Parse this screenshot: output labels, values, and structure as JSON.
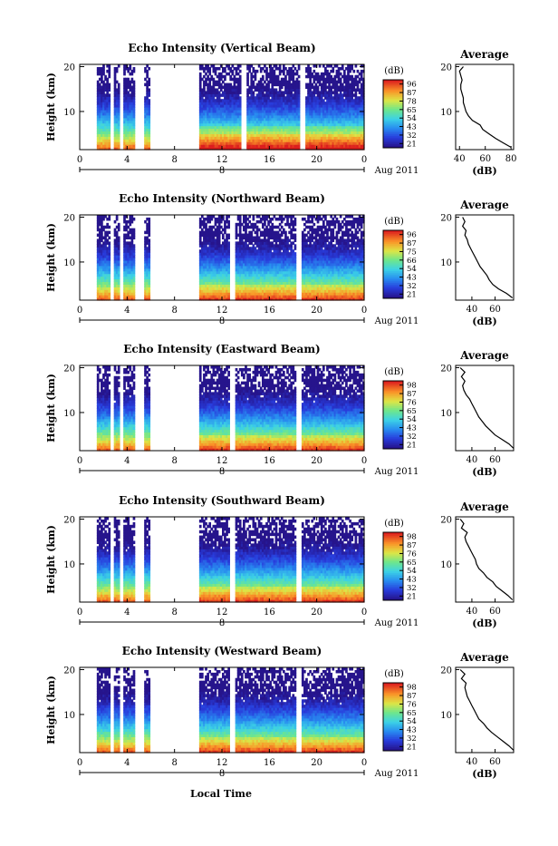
{
  "figure": {
    "xlabel": "Local Time",
    "date_label": "Aug 2011",
    "day_label": "8"
  },
  "chart_data": [
    {
      "type": "heatmap",
      "title": "Echo Intensity (Vertical Beam)",
      "ylabel": "Height (km)",
      "xlabel": "Local Time",
      "x_ticks": [
        "0",
        "4",
        "8",
        "12",
        "16",
        "20",
        "0"
      ],
      "y_ticks": [
        "20",
        "10"
      ],
      "xlim": [
        0,
        24
      ],
      "ylim": [
        1.5,
        20.5
      ],
      "colorbar": {
        "label": "(dB)",
        "ticks": [
          "96",
          "87",
          "78",
          "65",
          "54",
          "43",
          "32",
          "21"
        ],
        "range": [
          21,
          96
        ]
      },
      "data_gaps_hours": [
        [
          0,
          1.4
        ],
        [
          2.6,
          2.9
        ],
        [
          3.4,
          3.6
        ],
        [
          4.6,
          5.4
        ],
        [
          6.0,
          10.0
        ],
        [
          13.6,
          14.1
        ],
        [
          18.5,
          19.1
        ]
      ],
      "average_profile": {
        "title": "Average",
        "xlabel": "(dB)",
        "x_ticks": [
          "40",
          "60",
          "80"
        ],
        "xlim": [
          37,
          82
        ],
        "y_ticks": [
          "20",
          "10"
        ],
        "height_km": [
          2,
          3,
          4,
          5,
          6,
          7,
          8,
          9,
          10,
          11,
          12,
          13,
          14,
          15,
          16,
          17,
          18,
          19,
          20
        ],
        "db": [
          80,
          74,
          68,
          63,
          58,
          56,
          50,
          47,
          45,
          44,
          43,
          43,
          42,
          41,
          41,
          42,
          41,
          40,
          43
        ]
      }
    },
    {
      "type": "heatmap",
      "title": "Echo Intensity (Northward Beam)",
      "ylabel": "Height (km)",
      "xlabel": "Local Time",
      "x_ticks": [
        "0",
        "4",
        "8",
        "12",
        "16",
        "20",
        "0"
      ],
      "y_ticks": [
        "20",
        "10"
      ],
      "xlim": [
        0,
        24
      ],
      "ylim": [
        1.5,
        20.5
      ],
      "colorbar": {
        "label": "(dB)",
        "ticks": [
          "96",
          "87",
          "75",
          "66",
          "54",
          "43",
          "32",
          "21"
        ],
        "range": [
          21,
          96
        ]
      },
      "data_gaps_hours": [
        [
          0,
          1.4
        ],
        [
          2.6,
          2.9
        ],
        [
          3.4,
          3.6
        ],
        [
          4.6,
          5.4
        ],
        [
          6.0,
          10.0
        ],
        [
          12.6,
          13.1
        ],
        [
          18.2,
          18.7
        ]
      ],
      "average_profile": {
        "title": "Average",
        "xlabel": "(dB)",
        "x_ticks": [
          "40",
          "60"
        ],
        "xlim": [
          26,
          76
        ],
        "y_ticks": [
          "20",
          "10"
        ],
        "height_km": [
          2,
          3,
          4,
          5,
          6,
          7,
          8,
          9,
          10,
          11,
          12,
          13,
          14,
          15,
          16,
          17,
          18,
          19,
          20
        ],
        "db": [
          75,
          70,
          63,
          58,
          55,
          53,
          50,
          47,
          45,
          43,
          41,
          39,
          37,
          36,
          34,
          35,
          32,
          34,
          32
        ]
      }
    },
    {
      "type": "heatmap",
      "title": "Echo Intensity (Eastward Beam)",
      "ylabel": "Height (km)",
      "xlabel": "Local Time",
      "x_ticks": [
        "0",
        "4",
        "8",
        "12",
        "16",
        "20",
        "0"
      ],
      "y_ticks": [
        "20",
        "10"
      ],
      "xlim": [
        0,
        24
      ],
      "ylim": [
        1.5,
        20.5
      ],
      "colorbar": {
        "label": "(dB)",
        "ticks": [
          "98",
          "87",
          "76",
          "65",
          "54",
          "43",
          "32",
          "21"
        ],
        "range": [
          21,
          98
        ]
      },
      "data_gaps_hours": [
        [
          0,
          1.4
        ],
        [
          2.6,
          2.9
        ],
        [
          3.4,
          3.6
        ],
        [
          4.6,
          5.4
        ],
        [
          6.0,
          10.0
        ],
        [
          12.6,
          13.1
        ],
        [
          18.2,
          18.7
        ]
      ],
      "average_profile": {
        "title": "Average",
        "xlabel": "(dB)",
        "x_ticks": [
          "40",
          "60"
        ],
        "xlim": [
          26,
          76
        ],
        "y_ticks": [
          "20",
          "10"
        ],
        "height_km": [
          2,
          3,
          4,
          5,
          6,
          7,
          8,
          9,
          10,
          11,
          12,
          13,
          14,
          15,
          16,
          17,
          18,
          19,
          20
        ],
        "db": [
          76,
          72,
          66,
          60,
          56,
          52,
          49,
          46,
          44,
          42,
          40,
          38,
          35,
          33,
          32,
          34,
          31,
          34,
          30
        ]
      }
    },
    {
      "type": "heatmap",
      "title": "Echo Intensity (Southward Beam)",
      "ylabel": "Height (km)",
      "xlabel": "Local Time",
      "x_ticks": [
        "0",
        "4",
        "8",
        "12",
        "16",
        "20",
        "0"
      ],
      "y_ticks": [
        "20",
        "10"
      ],
      "xlim": [
        0,
        24
      ],
      "ylim": [
        1.5,
        20.5
      ],
      "colorbar": {
        "label": "(dB)",
        "ticks": [
          "98",
          "87",
          "76",
          "65",
          "54",
          "43",
          "32",
          "21"
        ],
        "range": [
          21,
          98
        ]
      },
      "data_gaps_hours": [
        [
          0,
          1.4
        ],
        [
          2.6,
          2.9
        ],
        [
          3.4,
          3.6
        ],
        [
          4.6,
          5.4
        ],
        [
          6.0,
          10.0
        ],
        [
          12.6,
          13.1
        ],
        [
          18.2,
          18.7
        ]
      ],
      "average_profile": {
        "title": "Average",
        "xlabel": "(dB)",
        "x_ticks": [
          "40",
          "60"
        ],
        "xlim": [
          26,
          76
        ],
        "y_ticks": [
          "20",
          "10"
        ],
        "height_km": [
          2,
          3,
          4,
          5,
          6,
          7,
          8,
          9,
          10,
          11,
          12,
          13,
          14,
          15,
          16,
          17,
          18,
          19,
          20
        ],
        "db": [
          75,
          71,
          66,
          61,
          58,
          53,
          50,
          46,
          44,
          43,
          41,
          39,
          37,
          35,
          34,
          36,
          31,
          33,
          30
        ]
      }
    },
    {
      "type": "heatmap",
      "title": "Echo Intensity (Westward Beam)",
      "ylabel": "Height (km)",
      "xlabel": "Local Time",
      "x_ticks": [
        "0",
        "4",
        "8",
        "12",
        "16",
        "20",
        "0"
      ],
      "y_ticks": [
        "20",
        "10"
      ],
      "xlim": [
        0,
        24
      ],
      "ylim": [
        1.5,
        20.5
      ],
      "colorbar": {
        "label": "(dB)",
        "ticks": [
          "98",
          "87",
          "76",
          "65",
          "54",
          "43",
          "32",
          "21"
        ],
        "range": [
          21,
          98
        ]
      },
      "data_gaps_hours": [
        [
          0,
          1.4
        ],
        [
          2.6,
          2.9
        ],
        [
          3.4,
          3.6
        ],
        [
          4.6,
          5.4
        ],
        [
          6.0,
          10.0
        ],
        [
          12.6,
          13.1
        ],
        [
          18.2,
          18.7
        ]
      ],
      "average_profile": {
        "title": "Average",
        "xlabel": "(dB)",
        "x_ticks": [
          "40",
          "60"
        ],
        "xlim": [
          26,
          76
        ],
        "y_ticks": [
          "20",
          "10"
        ],
        "height_km": [
          2,
          3,
          4,
          5,
          6,
          7,
          8,
          9,
          10,
          11,
          12,
          13,
          14,
          15,
          16,
          17,
          18,
          19,
          20
        ],
        "db": [
          76,
          72,
          67,
          62,
          57,
          53,
          50,
          46,
          44,
          42,
          40,
          38,
          36,
          35,
          34,
          35,
          31,
          34,
          30
        ]
      }
    }
  ]
}
